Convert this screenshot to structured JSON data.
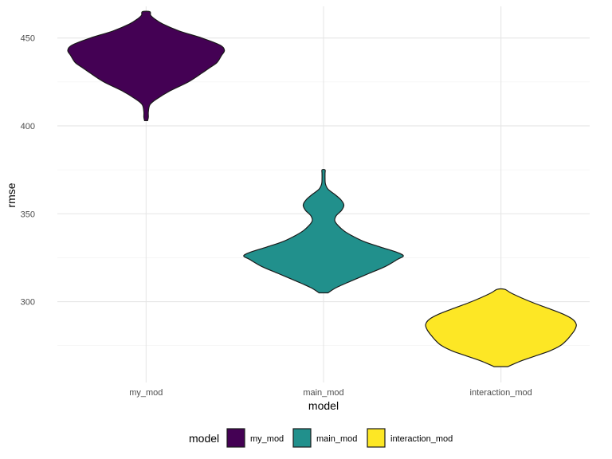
{
  "chart_data": {
    "type": "violin",
    "xlabel": "model",
    "ylabel": "rmse",
    "categories": [
      "my_mod",
      "main_mod",
      "interaction_mod"
    ],
    "ylim": [
      254,
      468
    ],
    "y_ticks": [
      300,
      350,
      400,
      450
    ],
    "y_tick_labels": [
      "300",
      "350",
      "400",
      "450"
    ],
    "grid": true,
    "legend": {
      "title": "model",
      "position": "bottom",
      "entries": [
        "my_mod",
        "main_mod",
        "interaction_mod"
      ]
    },
    "series": [
      {
        "name": "my_mod",
        "color": "#440154",
        "y_min": 403,
        "y_max": 465,
        "density_profile": [
          [
            403,
            0.02
          ],
          [
            405,
            0.03
          ],
          [
            408,
            0.03
          ],
          [
            412,
            0.05
          ],
          [
            415,
            0.13
          ],
          [
            420,
            0.32
          ],
          [
            425,
            0.56
          ],
          [
            430,
            0.74
          ],
          [
            433,
            0.84
          ],
          [
            436,
            0.94
          ],
          [
            440,
            1.0
          ],
          [
            443,
            1.04
          ],
          [
            446,
            0.98
          ],
          [
            450,
            0.74
          ],
          [
            454,
            0.44
          ],
          [
            458,
            0.22
          ],
          [
            461,
            0.11
          ],
          [
            463,
            0.06
          ],
          [
            465,
            0.05
          ]
        ]
      },
      {
        "name": "main_mod",
        "color": "#21908C",
        "y_min": 305,
        "y_max": 375,
        "density_profile": [
          [
            305,
            0.06
          ],
          [
            308,
            0.17
          ],
          [
            312,
            0.38
          ],
          [
            316,
            0.6
          ],
          [
            320,
            0.82
          ],
          [
            324,
            0.98
          ],
          [
            326,
            1.06
          ],
          [
            328,
            0.98
          ],
          [
            331,
            0.76
          ],
          [
            334,
            0.55
          ],
          [
            337,
            0.4
          ],
          [
            340,
            0.28
          ],
          [
            343,
            0.2
          ],
          [
            346,
            0.15
          ],
          [
            349,
            0.17
          ],
          [
            352,
            0.24
          ],
          [
            355,
            0.27
          ],
          [
            358,
            0.23
          ],
          [
            361,
            0.15
          ],
          [
            364,
            0.06
          ],
          [
            367,
            0.025
          ],
          [
            370,
            0.02
          ],
          [
            373,
            0.02
          ],
          [
            375,
            0.02
          ]
        ]
      },
      {
        "name": "interaction_mod",
        "color": "#FDE725",
        "y_min": 263,
        "y_max": 307,
        "density_profile": [
          [
            263,
            0.09
          ],
          [
            266,
            0.25
          ],
          [
            269,
            0.45
          ],
          [
            272,
            0.65
          ],
          [
            275,
            0.79
          ],
          [
            278,
            0.87
          ],
          [
            281,
            0.93
          ],
          [
            284,
            0.98
          ],
          [
            287,
            1.0
          ],
          [
            290,
            0.95
          ],
          [
            293,
            0.82
          ],
          [
            296,
            0.64
          ],
          [
            299,
            0.45
          ],
          [
            302,
            0.28
          ],
          [
            305,
            0.13
          ],
          [
            307,
            0.05
          ]
        ]
      }
    ]
  }
}
